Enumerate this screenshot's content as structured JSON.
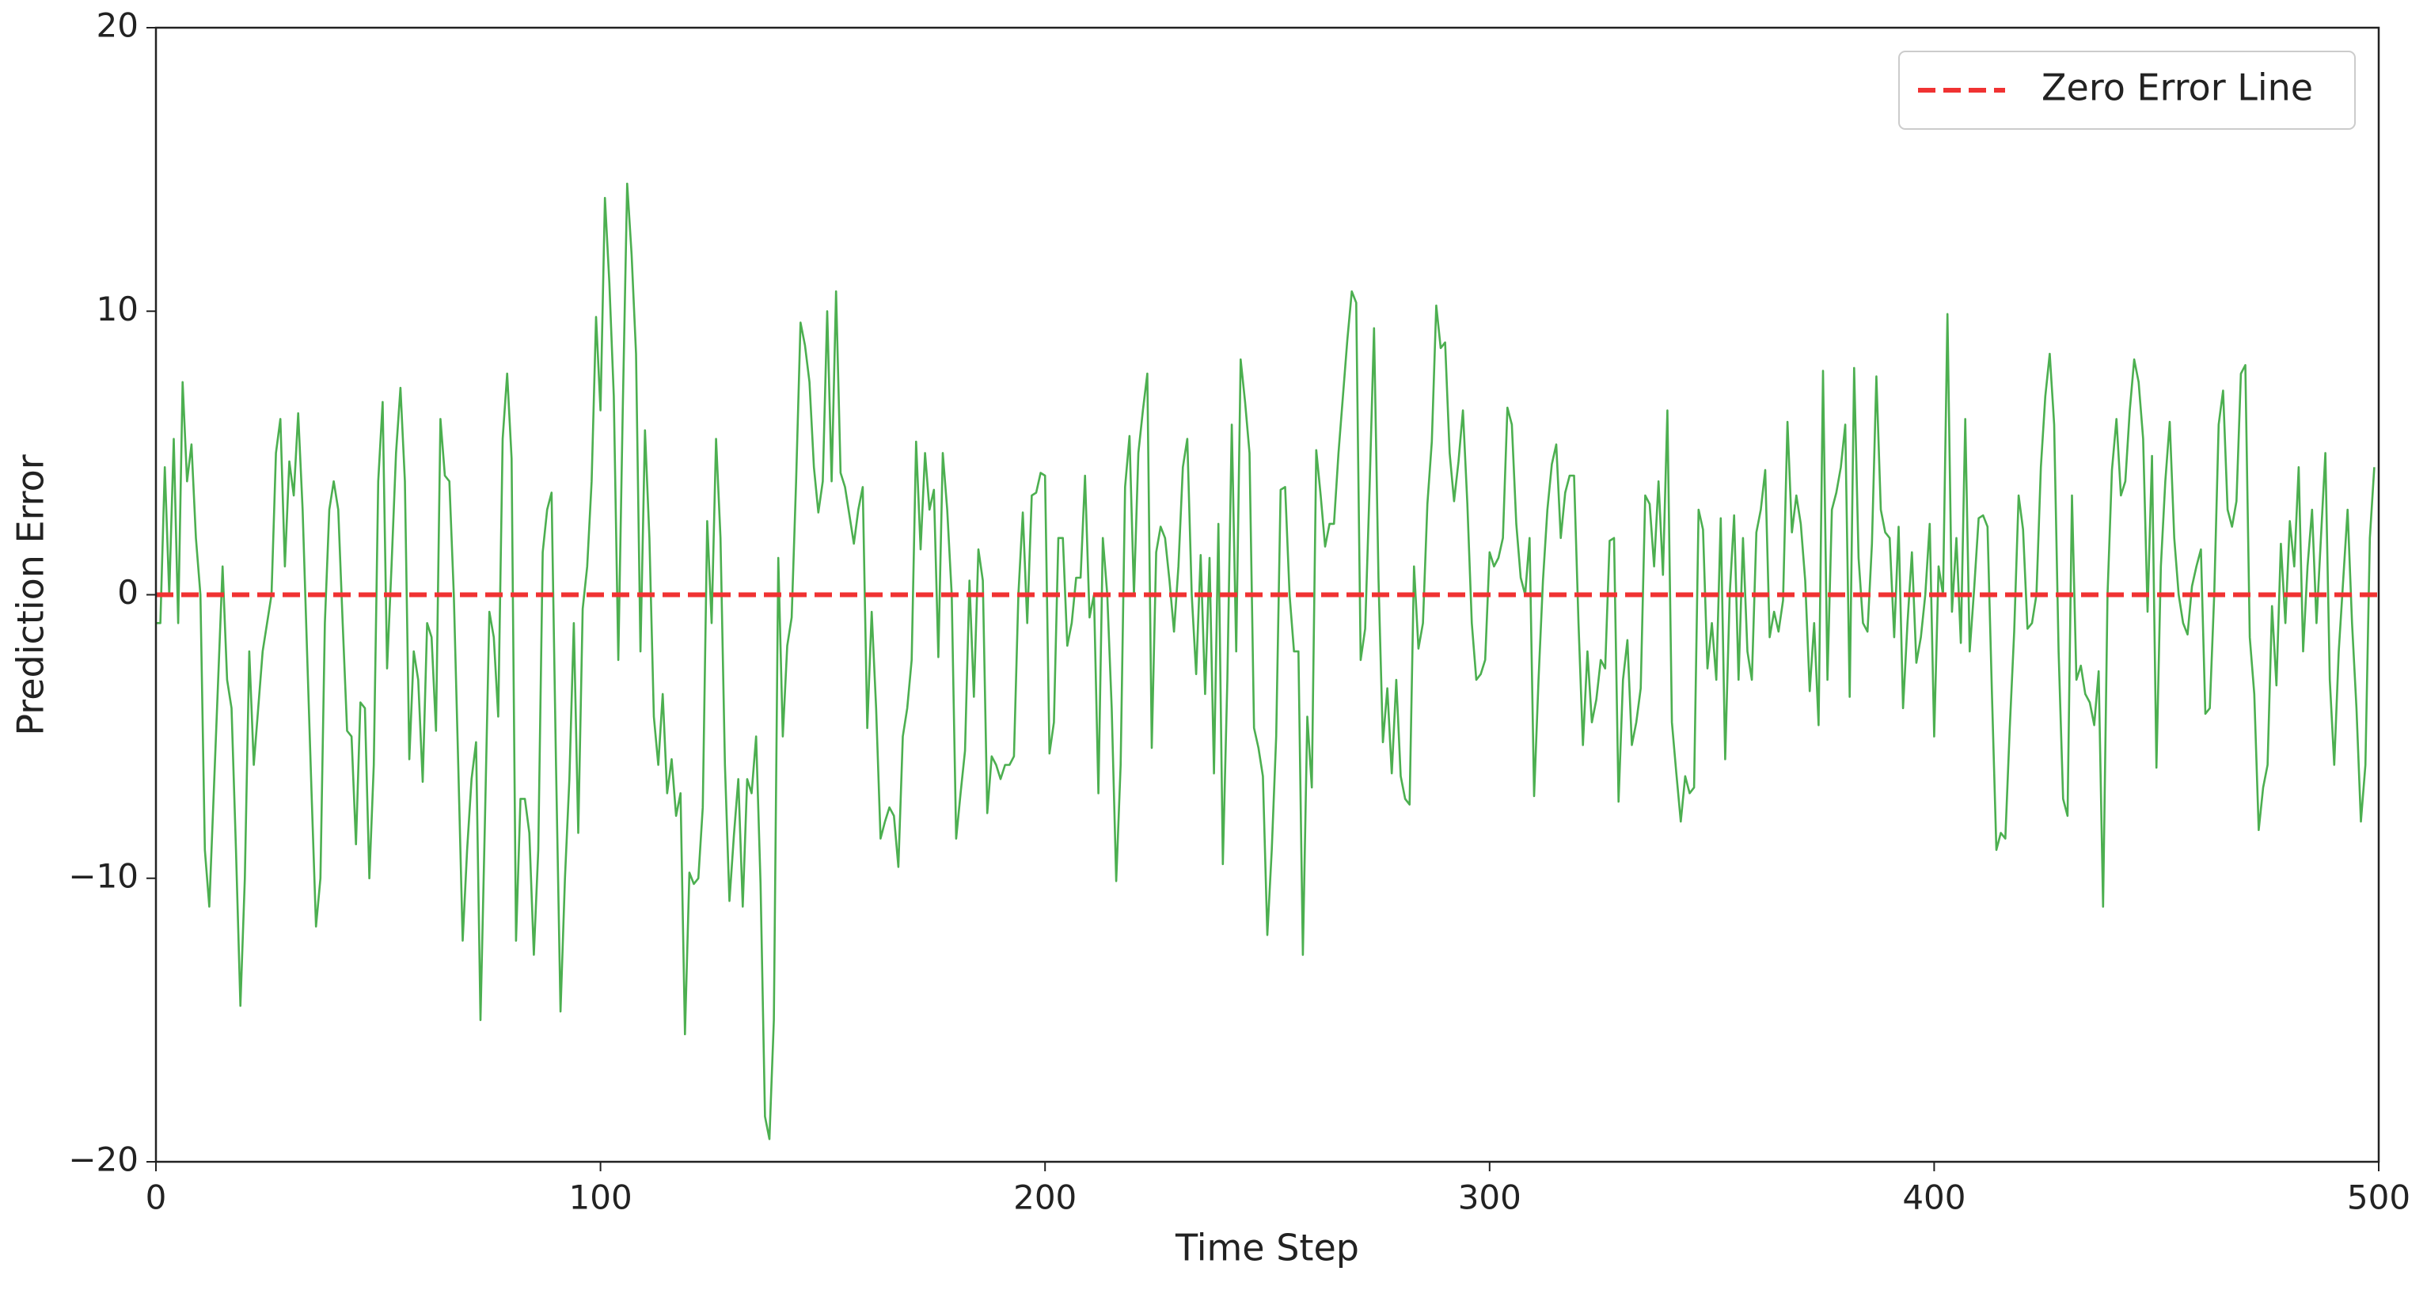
{
  "chart_data": {
    "type": "line",
    "xlabel": "Time Step",
    "ylabel": "Prediction Error",
    "xlim": [
      0,
      500
    ],
    "ylim": [
      -20,
      20
    ],
    "xticks": [
      0,
      100,
      200,
      300,
      400,
      500
    ],
    "yticks": [
      {
        "value": -20,
        "label": "−20"
      },
      {
        "value": -10,
        "label": "−10"
      },
      0,
      10,
      20
    ],
    "grid": false,
    "legend": "upper right",
    "hlines": [
      {
        "y": 0,
        "label": "Zero Error Line",
        "color": "#f03232",
        "style": "dashed"
      }
    ],
    "x": [
      0,
      1,
      2,
      3,
      4,
      5,
      6,
      7,
      8,
      9,
      10,
      11,
      12,
      13,
      14,
      15,
      16,
      17,
      18,
      19,
      20,
      21,
      22,
      23,
      24,
      25,
      26,
      27,
      28,
      29,
      30,
      31,
      32,
      33,
      34,
      35,
      36,
      37,
      38,
      39,
      40,
      41,
      42,
      43,
      44,
      45,
      46,
      47,
      48,
      49,
      50,
      51,
      52,
      53,
      54,
      55,
      56,
      57,
      58,
      59,
      60,
      61,
      62,
      63,
      64,
      65,
      66,
      67,
      68,
      69,
      70,
      71,
      72,
      73,
      74,
      75,
      76,
      77,
      78,
      79,
      80,
      81,
      82,
      83,
      84,
      85,
      86,
      87,
      88,
      89,
      90,
      91,
      92,
      93,
      94,
      95,
      96,
      97,
      98,
      99,
      100,
      101,
      102,
      103,
      104,
      105,
      106,
      107,
      108,
      109,
      110,
      111,
      112,
      113,
      114,
      115,
      116,
      117,
      118,
      119,
      120,
      121,
      122,
      123,
      124,
      125,
      126,
      127,
      128,
      129,
      130,
      131,
      132,
      133,
      134,
      135,
      136,
      137,
      138,
      139,
      140,
      141,
      142,
      143,
      144,
      145,
      146,
      147,
      148,
      149,
      150,
      151,
      152,
      153,
      154,
      155,
      156,
      157,
      158,
      159,
      160,
      161,
      162,
      163,
      164,
      165,
      166,
      167,
      168,
      169,
      170,
      171,
      172,
      173,
      174,
      175,
      176,
      177,
      178,
      179,
      180,
      181,
      182,
      183,
      184,
      185,
      186,
      187,
      188,
      189,
      190,
      191,
      192,
      193,
      194,
      195,
      196,
      197,
      198,
      199,
      200,
      201,
      202,
      203,
      204,
      205,
      206,
      207,
      208,
      209,
      210,
      211,
      212,
      213,
      214,
      215,
      216,
      217,
      218,
      219,
      220,
      221,
      222,
      223,
      224,
      225,
      226,
      227,
      228,
      229,
      230,
      231,
      232,
      233,
      234,
      235,
      236,
      237,
      238,
      239,
      240,
      241,
      242,
      243,
      244,
      245,
      246,
      247,
      248,
      249,
      250,
      251,
      252,
      253,
      254,
      255,
      256,
      257,
      258,
      259,
      260,
      261,
      262,
      263,
      264,
      265,
      266,
      267,
      268,
      269,
      270,
      271,
      272,
      273,
      274,
      275,
      276,
      277,
      278,
      279,
      280,
      281,
      282,
      283,
      284,
      285,
      286,
      287,
      288,
      289,
      290,
      291,
      292,
      293,
      294,
      295,
      296,
      297,
      298,
      299,
      300,
      301,
      302,
      303,
      304,
      305,
      306,
      307,
      308,
      309,
      310,
      311,
      312,
      313,
      314,
      315,
      316,
      317,
      318,
      319,
      320,
      321,
      322,
      323,
      324,
      325,
      326,
      327,
      328,
      329,
      330,
      331,
      332,
      333,
      334,
      335,
      336,
      337,
      338,
      339,
      340,
      341,
      342,
      343,
      344,
      345,
      346,
      347,
      348,
      349,
      350,
      351,
      352,
      353,
      354,
      355,
      356,
      357,
      358,
      359,
      360,
      361,
      362,
      363,
      364,
      365,
      366,
      367,
      368,
      369,
      370,
      371,
      372,
      373,
      374,
      375,
      376,
      377,
      378,
      379,
      380,
      381,
      382,
      383,
      384,
      385,
      386,
      387,
      388,
      389,
      390,
      391,
      392,
      393,
      394,
      395,
      396,
      397,
      398,
      399,
      400,
      401,
      402,
      403,
      404,
      405,
      406,
      407,
      408,
      409,
      410,
      411,
      412,
      413,
      414,
      415,
      416,
      417,
      418,
      419,
      420,
      421,
      422,
      423,
      424,
      425,
      426,
      427,
      428,
      429,
      430,
      431,
      432,
      433,
      434,
      435,
      436,
      437,
      438,
      439,
      440,
      441,
      442,
      443,
      444,
      445,
      446,
      447,
      448,
      449,
      450,
      451,
      452,
      453,
      454,
      455,
      456,
      457,
      458,
      459,
      460,
      461,
      462,
      463,
      464,
      465,
      466,
      467,
      468,
      469,
      470,
      471,
      472,
      473,
      474,
      475,
      476,
      477,
      478,
      479,
      480,
      481,
      482,
      483,
      484,
      485,
      486,
      487,
      488,
      489,
      490,
      491,
      492,
      493,
      494,
      495,
      496,
      497,
      498,
      499
    ],
    "series": [
      {
        "color": "#4caf50",
        "values": [
          -1,
          -1,
          4.5,
          0,
          5.5,
          -1,
          7.5,
          4,
          5.3,
          2,
          0,
          -9,
          -11,
          -7,
          -3,
          1,
          -3,
          -4,
          -9,
          -14.5,
          -10,
          -2,
          -6,
          -4,
          -2,
          -1,
          0,
          5,
          6.2,
          1,
          4.7,
          3.5,
          6.4,
          3,
          -2,
          -7,
          -11.7,
          -10,
          -1,
          3,
          4,
          3,
          -1,
          -4.8,
          -5,
          -8.8,
          -3.8,
          -4,
          -10,
          -6,
          4,
          6.8,
          -2.6,
          1,
          5,
          7.3,
          4,
          -5.8,
          -2,
          -3,
          -6.6,
          -1,
          -1.5,
          -4.8,
          6.2,
          4.2,
          4,
          0,
          -6,
          -12.2,
          -9,
          -6.5,
          -5.2,
          -15,
          -8,
          -0.6,
          -1.5,
          -4.3,
          5.5,
          7.8,
          4.8,
          -12.2,
          -7.2,
          -7.2,
          -8.4,
          -12.7,
          -9,
          1.5,
          3,
          3.6,
          -6,
          -14.7,
          -10,
          -6.5,
          -1,
          -8.4,
          -0.5,
          1,
          4,
          9.8,
          6.5,
          14,
          11,
          7,
          -2.3,
          6.5,
          14.5,
          12,
          8.5,
          -2,
          5.8,
          2,
          -4.3,
          -6,
          -3.5,
          -7,
          -5.8,
          -7.8,
          -7,
          -15.5,
          -9.8,
          -10.2,
          -10,
          -7.5,
          2.6,
          -1,
          5.5,
          2,
          -6,
          -10.8,
          -8.5,
          -6.5,
          -11,
          -6.5,
          -7,
          -5,
          -10.2,
          -18.4,
          -19.2,
          -15,
          1.3,
          -5,
          -1.8,
          -0.8,
          4,
          9.6,
          8.8,
          7.5,
          4.5,
          2.9,
          4,
          10,
          4,
          10.7,
          4.3,
          3.8,
          2.8,
          1.8,
          3,
          3.8,
          -4.7,
          -0.6,
          -4,
          -8.6,
          -8,
          -7.5,
          -7.8,
          -9.6,
          -5,
          -4,
          -2.3,
          5.4,
          1.6,
          5,
          3,
          3.7,
          -2.2,
          5,
          3,
          0,
          -8.6,
          -7,
          -5.5,
          0.5,
          -3.6,
          1.6,
          0.5,
          -7.7,
          -5.7,
          -6,
          -6.5,
          -6,
          -6,
          -5.7,
          0,
          2.9,
          -1,
          3.5,
          3.6,
          4.3,
          4.2,
          -5.6,
          -4.5,
          2,
          2,
          -1.8,
          -1,
          0.6,
          0.6,
          4.2,
          -0.8,
          0,
          -7,
          2,
          0,
          -4,
          -10.1,
          -6,
          3.8,
          5.6,
          0,
          5,
          6.5,
          7.8,
          -5.4,
          1.5,
          2.4,
          2,
          0.5,
          -1.3,
          1,
          4.5,
          5.5,
          0,
          -2.8,
          1.4,
          -3.5,
          1.3,
          -6.3,
          2.5,
          -9.5,
          -3,
          6,
          -2,
          8.3,
          6.8,
          5,
          -4.7,
          -5.4,
          -6.4,
          -12,
          -9,
          -5,
          3.7,
          3.8,
          0,
          -2,
          -2,
          -12.7,
          -4.3,
          -6.8,
          5.1,
          3.5,
          1.7,
          2.5,
          2.5,
          5,
          7,
          9,
          10.7,
          10.3,
          -2.3,
          -1.2,
          3.8,
          9.4,
          0.6,
          -5.2,
          -3.3,
          -6.3,
          -3,
          -6.4,
          -7.2,
          -7.4,
          1,
          -1.9,
          -1,
          3.2,
          5.4,
          10.2,
          8.7,
          8.9,
          5,
          3.3,
          4.7,
          6.5,
          3.2,
          -1,
          -3,
          -2.8,
          -2.3,
          1.5,
          1,
          1.3,
          2,
          6.6,
          6,
          2.5,
          0.6,
          0,
          2,
          -7.1,
          -3,
          0.5,
          3,
          4.6,
          5.3,
          2,
          3.6,
          4.2,
          4.2,
          -1,
          -5.3,
          -2,
          -4.5,
          -3.7,
          -2.3,
          -2.6,
          1.9,
          2,
          -7.3,
          -3,
          -1.6,
          -5.3,
          -4.5,
          -3.3,
          3.5,
          3.2,
          1,
          4,
          0.7,
          6.5,
          -4.5,
          -6.3,
          -8,
          -6.4,
          -7,
          -6.8,
          3,
          2.3,
          -2.6,
          -1,
          -3,
          2.7,
          -5.8,
          0,
          2.8,
          -3,
          2,
          -2,
          -3,
          2.2,
          3,
          4.4,
          -1.5,
          -0.6,
          -1.3,
          -0.2,
          6.1,
          2.2,
          3.5,
          2.5,
          0.5,
          -3.4,
          -1,
          -4.6,
          7.9,
          -3,
          3,
          3.6,
          4.5,
          6,
          -3.6,
          8,
          1.3,
          -1,
          -1.3,
          1.8,
          7.7,
          3,
          2.2,
          2,
          -1.5,
          2.4,
          -4,
          -1,
          1.5,
          -2.4,
          -1.5,
          0,
          2.5,
          -5,
          1,
          0,
          9.9,
          -0.6,
          2,
          -1.7,
          6.2,
          -2,
          0.2,
          2.7,
          2.8,
          2.4,
          -3.5,
          -9,
          -8.4,
          -8.6,
          -4.7,
          -1.3,
          3.5,
          2.3,
          -1.2,
          -1,
          0,
          4.5,
          7,
          8.5,
          6,
          -2,
          -7.2,
          -7.8,
          3.5,
          -3,
          -2.5,
          -3.5,
          -3.8,
          -4.6,
          -2.7,
          -11,
          0,
          4.4,
          6.2,
          3.5,
          4,
          6.5,
          8.3,
          7.5,
          5.5,
          -0.6,
          4.9,
          -6.1,
          1,
          4,
          6.1,
          2,
          0,
          -1,
          -1.4,
          0.3,
          1,
          1.6,
          -4.2,
          -4,
          0,
          6,
          7.2,
          3,
          2.4,
          3.3,
          7.8,
          8.1,
          -1.5,
          -3.5,
          -8.3,
          -6.8,
          -6,
          -0.4,
          -3.2,
          1.8,
          -1,
          2.6,
          1,
          4.5,
          -2,
          1,
          3,
          -1,
          2,
          5,
          -3,
          -6,
          -2,
          0.5,
          3,
          -1,
          -4,
          -8,
          -6,
          2,
          4.5
        ]
      }
    ]
  }
}
